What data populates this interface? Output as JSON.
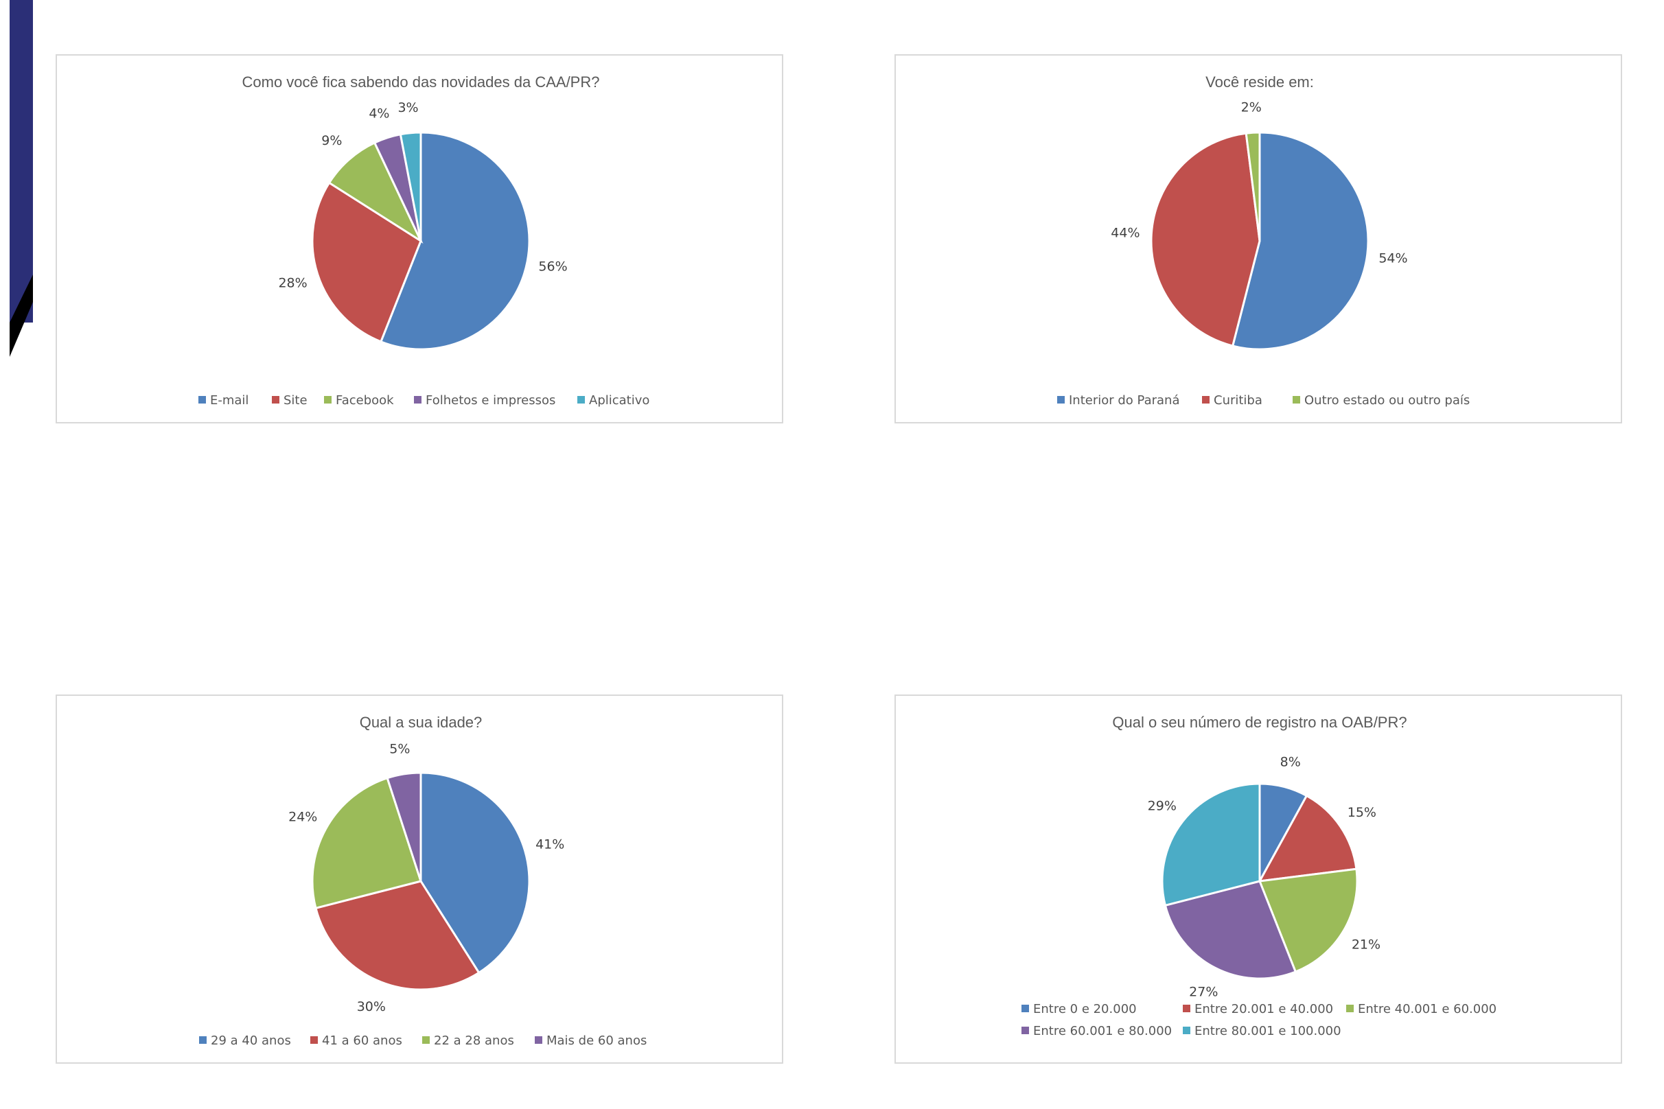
{
  "chart_data": [
    {
      "type": "pie",
      "title": "Como você fica sabendo das novidades da CAA/PR?",
      "categories": [
        "E-mail",
        "Site",
        "Facebook",
        "Folhetos e impressos",
        "Aplicativo"
      ],
      "values": [
        56,
        28,
        9,
        4,
        3
      ],
      "labels": [
        "56%",
        "28%",
        "9%",
        "4%",
        "3%"
      ],
      "colors": [
        "#4f81bd",
        "#c0504d",
        "#9bbb59",
        "#8064a2",
        "#4bacc6"
      ],
      "legend": "bottom"
    },
    {
      "type": "pie",
      "title": "Você reside em:",
      "categories": [
        "Interior do Paraná",
        "Curitiba",
        "Outro estado ou outro país"
      ],
      "values": [
        54,
        44,
        2
      ],
      "labels": [
        "54%",
        "44%",
        "2%"
      ],
      "colors": [
        "#4f81bd",
        "#c0504d",
        "#9bbb59"
      ],
      "legend": "bottom"
    },
    {
      "type": "pie",
      "title": "Qual a sua idade?",
      "categories": [
        "29 a 40 anos",
        "41 a 60 anos",
        "22 a 28 anos",
        "Mais de 60 anos"
      ],
      "values": [
        41,
        30,
        24,
        5
      ],
      "labels": [
        "41%",
        "30%",
        "24%",
        "5%"
      ],
      "colors": [
        "#4f81bd",
        "#c0504d",
        "#9bbb59",
        "#8064a2"
      ],
      "legend": "bottom"
    },
    {
      "type": "pie",
      "title": "Qual o seu número de registro na OAB/PR?",
      "categories": [
        "Entre 0 e 20.000",
        "Entre 20.001 e 40.000",
        "Entre 40.001 e 60.000",
        "Entre 60.001 e 80.000",
        "Entre 80.001 e 100.000"
      ],
      "values": [
        8,
        15,
        21,
        27,
        29
      ],
      "labels": [
        "8%",
        "15%",
        "21%",
        "27%",
        "29%"
      ],
      "colors": [
        "#4f81bd",
        "#c0504d",
        "#9bbb59",
        "#8064a2",
        "#4bacc6"
      ],
      "legend": "bottom"
    }
  ]
}
